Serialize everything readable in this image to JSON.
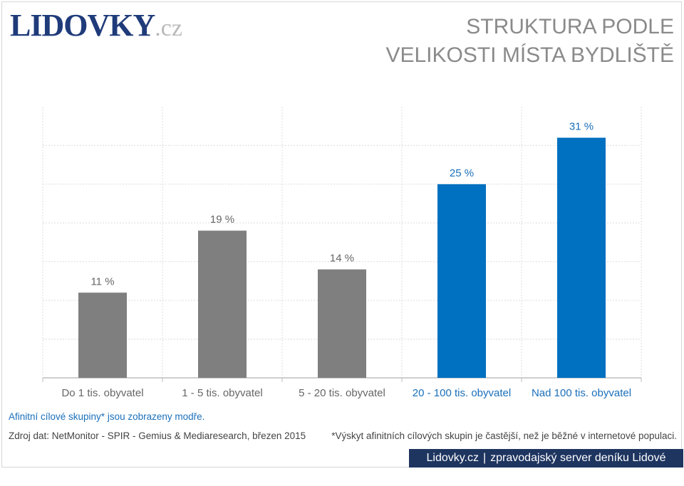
{
  "logo": {
    "main": "LIDOVKY",
    "tld": ".cz"
  },
  "title": {
    "line1": "STRUKTURA PODLE",
    "line2": "VELIKOSTI MÍSTA BYDLIŠTĚ"
  },
  "chart_data": {
    "type": "bar",
    "categories": [
      "Do 1 tis. obyvatel",
      "1 - 5 tis. obyvatel",
      "5 - 20 tis. obyvatel",
      "20 - 100 tis. obyvatel",
      "Nad 100 tis. obyvatel"
    ],
    "values": [
      11,
      19,
      14,
      25,
      31
    ],
    "data_labels": [
      "11 %",
      "19 %",
      "14 %",
      "25 %",
      "31 %"
    ],
    "highlight": [
      false,
      false,
      false,
      true,
      true
    ],
    "ylim": [
      0,
      35
    ],
    "grid": true,
    "title": "STRUKTURA PODLE VELIKOSTI MÍSTA BYDLIŠTĚ"
  },
  "colors": {
    "bar_default": "#7f7f7f",
    "bar_highlight": "#0070c0",
    "label_default": "#666666",
    "label_highlight": "#1a6fba",
    "footer_bg": "#1e3560"
  },
  "notes": {
    "affinity": "Afinitní cílové skupiny* jsou zobrazeny modře.",
    "source": "Zdroj dat: NetMonitor - SPIR - Gemius & Mediaresearch, březen 2015",
    "footnote": "*Výskyt afinitních cílových skupin je častější, než je běžné v internetové populaci."
  },
  "footer": {
    "site": "Lidovky.cz",
    "separator": "|",
    "tagline": "zpravodajský server deníku Lidové noviny"
  }
}
